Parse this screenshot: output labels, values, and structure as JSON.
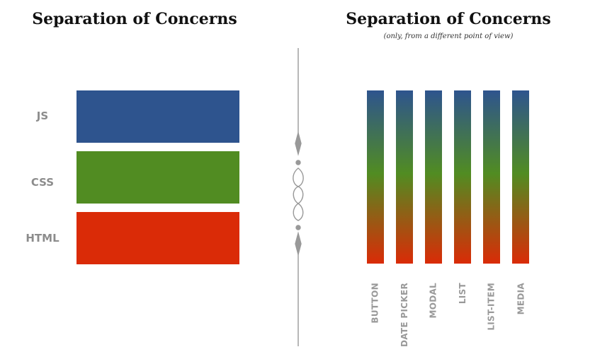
{
  "left": {
    "title": "Separation of Concerns",
    "layers": [
      {
        "label": "JS",
        "color": "#2e548e"
      },
      {
        "label": "CSS",
        "color": "#518c22"
      },
      {
        "label": "HTML",
        "color": "#da2b07"
      }
    ]
  },
  "right": {
    "title": "Separation of Concerns",
    "subtitle": "(only, from a different point of view)",
    "gradient_colors": [
      "#2e548e",
      "#518c22",
      "#da2b07"
    ],
    "components": [
      {
        "label": "BUTTON"
      },
      {
        "label": "DATE PICKER"
      },
      {
        "label": "MODAL"
      },
      {
        "label": "LIST"
      },
      {
        "label": "LIST-ITEM"
      },
      {
        "label": "MEDIA"
      }
    ]
  },
  "divider": {
    "icon": "ornamental-flourish-divider",
    "color": "#999999"
  }
}
